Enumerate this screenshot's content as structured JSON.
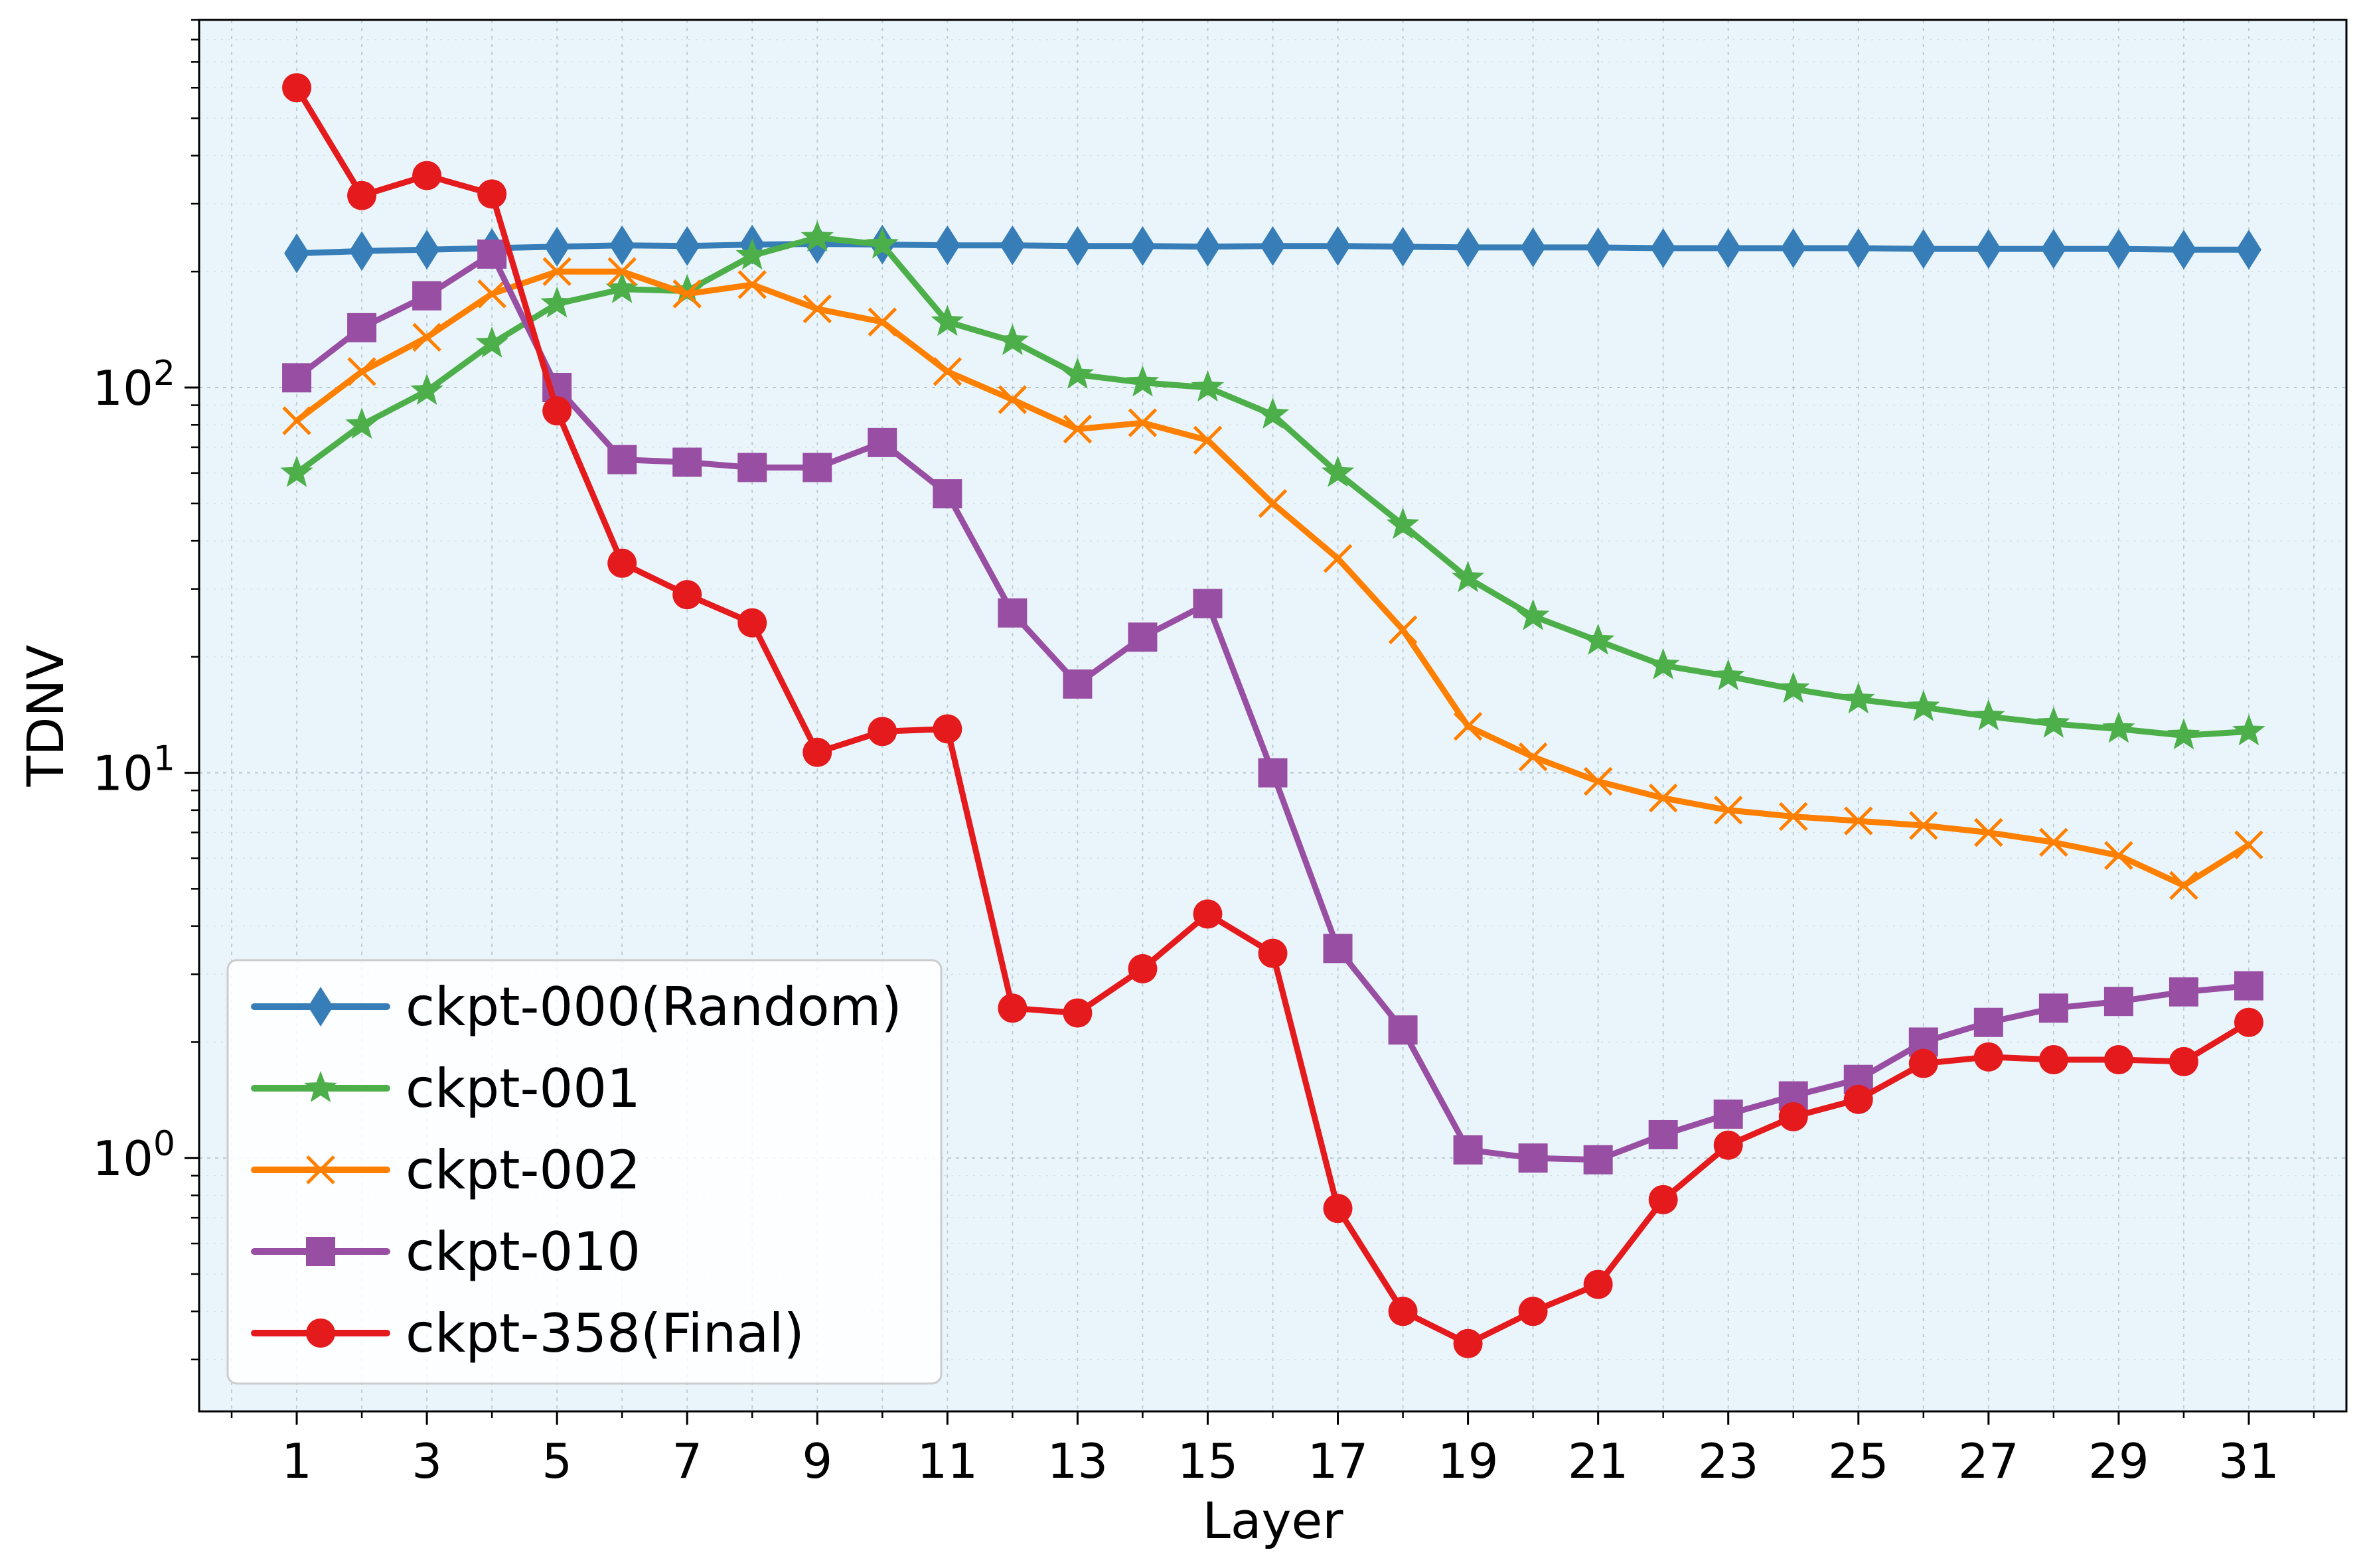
{
  "chart_data": {
    "type": "line",
    "title": "",
    "xlabel": "Layer",
    "ylabel": "TDNV",
    "y_scale": "log",
    "ylim": [
      0.22,
      900
    ],
    "xlim": [
      -0.5,
      32.5
    ],
    "x_ticks": [
      1,
      3,
      5,
      7,
      9,
      11,
      13,
      15,
      17,
      19,
      21,
      23,
      25,
      27,
      29,
      31
    ],
    "x_tick_labels": [
      "1",
      "3",
      "5",
      "7",
      "9",
      "11",
      "13",
      "15",
      "17",
      "19",
      "21",
      "23",
      "25",
      "27",
      "29",
      "31"
    ],
    "y_ticks": [
      1,
      10,
      100
    ],
    "y_tick_labels": [
      {
        "base": "10",
        "exp": "0"
      },
      {
        "base": "10",
        "exp": "1"
      },
      {
        "base": "10",
        "exp": "2"
      }
    ],
    "grid": true,
    "legend_position": "lower-left",
    "background": "#eaf5fb",
    "x": [
      1,
      2,
      3,
      4,
      5,
      6,
      7,
      8,
      9,
      10,
      11,
      12,
      13,
      14,
      15,
      16,
      17,
      18,
      19,
      20,
      21,
      22,
      23,
      24,
      25,
      26,
      27,
      28,
      29,
      30,
      31
    ],
    "series": [
      {
        "name": "ckpt-000(Random)",
        "color": "#377eb8",
        "marker": "diamond",
        "values": [
          223,
          226,
          228,
          230,
          232,
          234,
          233,
          235,
          236,
          235,
          234,
          234,
          233,
          233,
          232,
          233,
          233,
          232,
          231,
          231,
          231,
          230,
          230,
          230,
          230,
          229,
          229,
          229,
          229,
          228,
          228
        ]
      },
      {
        "name": "ckpt-001",
        "color": "#4daf4a",
        "marker": "star",
        "values": [
          60,
          80,
          98,
          130,
          165,
          180,
          178,
          220,
          245,
          235,
          148,
          132,
          108,
          103,
          100,
          85,
          60,
          44,
          32,
          25.5,
          22,
          19,
          17.8,
          16.5,
          15.5,
          14.8,
          14,
          13.4,
          13,
          12.5,
          12.8
        ]
      },
      {
        "name": "ckpt-002",
        "color": "#ff7f00",
        "marker": "x",
        "values": [
          82,
          110,
          135,
          175,
          200,
          200,
          175,
          185,
          160,
          148,
          110,
          93,
          78,
          81,
          73,
          50,
          36,
          23.5,
          13.2,
          11,
          9.5,
          8.6,
          8,
          7.7,
          7.5,
          7.3,
          7,
          6.6,
          6.1,
          5.1,
          6.5
        ]
      },
      {
        "name": "ckpt-010",
        "color": "#984ea3",
        "marker": "square",
        "values": [
          106,
          143,
          173,
          222,
          100,
          65,
          64,
          62,
          62,
          72,
          53,
          26,
          17,
          22.5,
          27.5,
          10,
          3.5,
          2.15,
          1.05,
          1.0,
          0.99,
          1.15,
          1.3,
          1.45,
          1.6,
          2.0,
          2.25,
          2.45,
          2.55,
          2.7,
          2.8
        ]
      },
      {
        "name": "ckpt-358(Final)",
        "color": "#e41a1c",
        "marker": "circle",
        "values": [
          600,
          315,
          355,
          318,
          87,
          35,
          29,
          24.5,
          11.3,
          12.8,
          13,
          2.45,
          2.38,
          3.1,
          4.3,
          3.4,
          0.74,
          0.4,
          0.33,
          0.4,
          0.47,
          0.78,
          1.08,
          1.28,
          1.42,
          1.76,
          1.83,
          1.8,
          1.8,
          1.78,
          2.25
        ]
      }
    ]
  }
}
